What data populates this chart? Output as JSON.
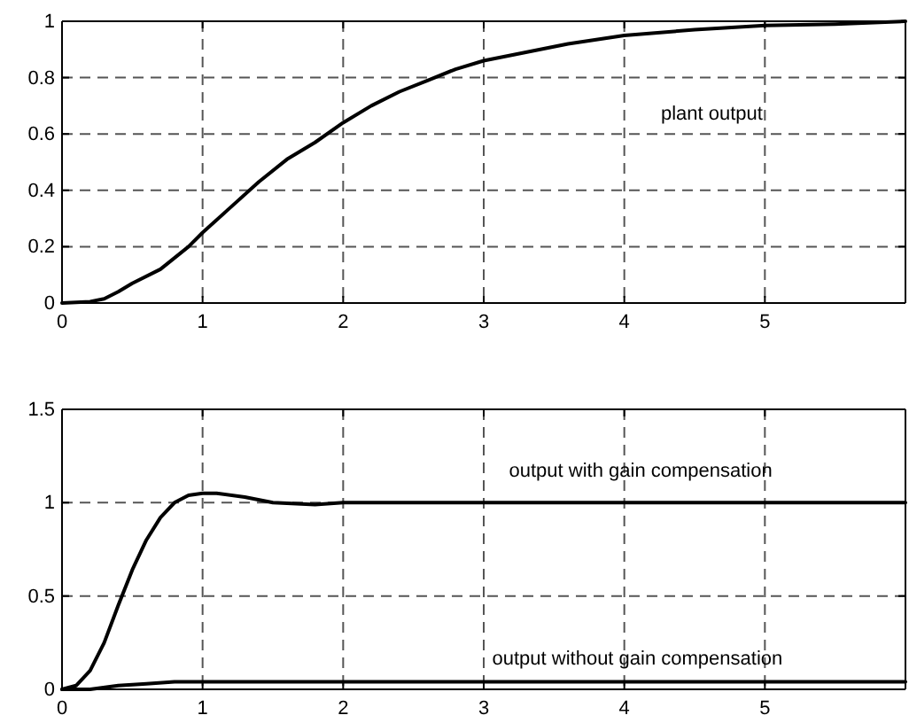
{
  "chart_data": [
    {
      "type": "line",
      "xlim": [
        0,
        6
      ],
      "xticks": [
        0,
        1,
        2,
        3,
        4,
        5
      ],
      "ylim": [
        0,
        1
      ],
      "yticks": [
        0,
        0.2,
        0.4,
        0.6,
        0.8,
        1
      ],
      "grid": true,
      "line_style": "solid",
      "marker": "none",
      "series": [
        {
          "name": "plant output",
          "color": "#000000",
          "x": [
            0,
            0.2,
            0.3,
            0.4,
            0.5,
            0.7,
            0.9,
            1,
            1.2,
            1.4,
            1.6,
            1.8,
            2,
            2.2,
            2.4,
            2.6,
            2.8,
            3,
            3.3,
            3.6,
            4,
            4.5,
            5,
            5.5,
            6
          ],
          "values": [
            0,
            0.005,
            0.015,
            0.04,
            0.07,
            0.12,
            0.2,
            0.25,
            0.34,
            0.43,
            0.51,
            0.57,
            0.64,
            0.7,
            0.75,
            0.79,
            0.83,
            0.86,
            0.89,
            0.92,
            0.95,
            0.97,
            0.985,
            0.99,
            1
          ]
        }
      ]
    },
    {
      "type": "line",
      "xlim": [
        0,
        6
      ],
      "xticks": [
        0,
        1,
        2,
        3,
        4,
        5
      ],
      "ylim": [
        0,
        1.5
      ],
      "yticks": [
        0,
        0.5,
        1,
        1.5
      ],
      "grid": true,
      "line_style": "solid",
      "marker": "none",
      "series": [
        {
          "name": "output with gain compensation",
          "color": "#000000",
          "x": [
            0,
            0.1,
            0.2,
            0.3,
            0.4,
            0.5,
            0.6,
            0.7,
            0.8,
            0.9,
            1,
            1.1,
            1.3,
            1.5,
            1.8,
            2,
            6
          ],
          "values": [
            0,
            0.02,
            0.1,
            0.25,
            0.45,
            0.64,
            0.8,
            0.92,
            1,
            1.04,
            1.05,
            1.05,
            1.03,
            1,
            0.99,
            1,
            1
          ]
        },
        {
          "name": "output without gain compensation",
          "color": "#000000",
          "x": [
            0,
            0.2,
            0.4,
            0.6,
            0.8,
            1,
            6
          ],
          "values": [
            0,
            0,
            0.02,
            0.03,
            0.04,
            0.04,
            0.04
          ]
        }
      ]
    }
  ]
}
